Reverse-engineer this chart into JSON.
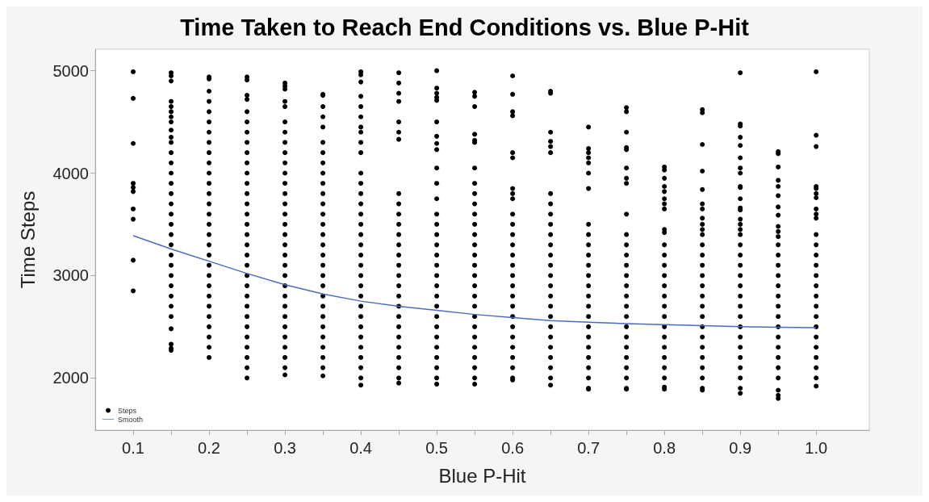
{
  "chart_data": {
    "type": "scatter",
    "title": "Time Taken to Reach End Conditions vs. Blue P-Hit",
    "xlabel": "Blue P-Hit",
    "ylabel": "Time Steps",
    "xlim": [
      0.05,
      1.07
    ],
    "ylim": [
      1490,
      5210
    ],
    "xticks": [
      0.1,
      {
        "value": 0.15,
        "label": null
      },
      0.2,
      {
        "value": 0.25,
        "label": null
      },
      0.3,
      {
        "value": 0.35,
        "label": null
      },
      0.4,
      {
        "value": 0.45,
        "label": null
      },
      0.5,
      {
        "value": 0.55,
        "label": null
      },
      0.6,
      {
        "value": 0.65,
        "label": null
      },
      0.7,
      {
        "value": 0.75,
        "label": null
      },
      0.8,
      {
        "value": 0.85,
        "label": null
      },
      0.9,
      {
        "value": 0.95,
        "label": null
      },
      {
        "value": 1,
        "label": "1.0"
      }
    ],
    "yticks": [
      2000,
      3000,
      4000,
      5000
    ],
    "grid": false,
    "legend": "bottom left",
    "series": [
      {
        "name": "Steps",
        "type": "scatter",
        "color": "#000000",
        "marker": "circle",
        "x": [
          0.1,
          0.1,
          0.1,
          0.1,
          0.1,
          0.1,
          0.1,
          0.1,
          0.1,
          0.1,
          0.15,
          0.15,
          0.15,
          0.15,
          0.15,
          0.15,
          0.15,
          0.15,
          0.15,
          0.15,
          0.15,
          0.15,
          0.15,
          0.15,
          0.15,
          0.15,
          0.15,
          0.15,
          0.15,
          0.15,
          0.15,
          0.15,
          0.15,
          0.15,
          0.15,
          0.15,
          0.15,
          0.15,
          0.15,
          0.15,
          0.15,
          0.15,
          0.2,
          0.2,
          0.2,
          0.2,
          0.2,
          0.2,
          0.2,
          0.2,
          0.2,
          0.2,
          0.2,
          0.2,
          0.2,
          0.2,
          0.2,
          0.2,
          0.2,
          0.2,
          0.2,
          0.2,
          0.2,
          0.2,
          0.2,
          0.2,
          0.2,
          0.2,
          0.2,
          0.2,
          0.2,
          0.25,
          0.25,
          0.25,
          0.25,
          0.25,
          0.25,
          0.25,
          0.25,
          0.25,
          0.25,
          0.25,
          0.25,
          0.25,
          0.25,
          0.25,
          0.25,
          0.25,
          0.25,
          0.25,
          0.25,
          0.25,
          0.25,
          0.25,
          0.25,
          0.25,
          0.25,
          0.25,
          0.25,
          0.25,
          0.25,
          0.25,
          0.3,
          0.3,
          0.3,
          0.3,
          0.3,
          0.3,
          0.3,
          0.3,
          0.3,
          0.3,
          0.3,
          0.3,
          0.3,
          0.3,
          0.3,
          0.3,
          0.3,
          0.3,
          0.3,
          0.3,
          0.3,
          0.3,
          0.3,
          0.3,
          0.3,
          0.3,
          0.3,
          0.3,
          0.3,
          0.3,
          0.3,
          0.35,
          0.35,
          0.35,
          0.35,
          0.35,
          0.35,
          0.35,
          0.35,
          0.35,
          0.35,
          0.35,
          0.35,
          0.35,
          0.35,
          0.35,
          0.35,
          0.35,
          0.35,
          0.35,
          0.35,
          0.35,
          0.35,
          0.35,
          0.35,
          0.35,
          0.35,
          0.35,
          0.35,
          0.35,
          0.4,
          0.4,
          0.4,
          0.4,
          0.4,
          0.4,
          0.4,
          0.4,
          0.4,
          0.4,
          0.4,
          0.4,
          0.4,
          0.4,
          0.4,
          0.4,
          0.4,
          0.4,
          0.4,
          0.4,
          0.4,
          0.4,
          0.4,
          0.4,
          0.4,
          0.4,
          0.4,
          0.4,
          0.4,
          0.4,
          0.4,
          0.4,
          0.45,
          0.45,
          0.45,
          0.45,
          0.45,
          0.45,
          0.45,
          0.45,
          0.45,
          0.45,
          0.45,
          0.45,
          0.45,
          0.45,
          0.45,
          0.45,
          0.45,
          0.45,
          0.45,
          0.45,
          0.45,
          0.45,
          0.45,
          0.45,
          0.45,
          0.45,
          0.45,
          0.5,
          0.5,
          0.5,
          0.5,
          0.5,
          0.5,
          0.5,
          0.5,
          0.5,
          0.5,
          0.5,
          0.5,
          0.5,
          0.5,
          0.5,
          0.5,
          0.5,
          0.5,
          0.5,
          0.5,
          0.5,
          0.5,
          0.5,
          0.5,
          0.5,
          0.5,
          0.5,
          0.5,
          0.5,
          0.5,
          0.55,
          0.55,
          0.55,
          0.55,
          0.55,
          0.55,
          0.55,
          0.55,
          0.55,
          0.55,
          0.55,
          0.55,
          0.55,
          0.55,
          0.55,
          0.55,
          0.55,
          0.55,
          0.55,
          0.55,
          0.55,
          0.55,
          0.55,
          0.55,
          0.55,
          0.55,
          0.55,
          0.55,
          0.6,
          0.6,
          0.6,
          0.6,
          0.6,
          0.6,
          0.6,
          0.6,
          0.6,
          0.6,
          0.6,
          0.6,
          0.6,
          0.6,
          0.6,
          0.6,
          0.6,
          0.6,
          0.6,
          0.6,
          0.6,
          0.6,
          0.6,
          0.6,
          0.6,
          0.6,
          0.6,
          0.65,
          0.65,
          0.65,
          0.65,
          0.65,
          0.65,
          0.65,
          0.65,
          0.65,
          0.65,
          0.65,
          0.65,
          0.65,
          0.65,
          0.65,
          0.65,
          0.65,
          0.65,
          0.65,
          0.65,
          0.65,
          0.65,
          0.65,
          0.65,
          0.65,
          0.65,
          0.7,
          0.7,
          0.7,
          0.7,
          0.7,
          0.7,
          0.7,
          0.7,
          0.7,
          0.7,
          0.7,
          0.7,
          0.7,
          0.7,
          0.7,
          0.7,
          0.7,
          0.7,
          0.7,
          0.7,
          0.7,
          0.7,
          0.7,
          0.7,
          0.7,
          0.75,
          0.75,
          0.75,
          0.75,
          0.75,
          0.75,
          0.75,
          0.75,
          0.75,
          0.75,
          0.75,
          0.75,
          0.75,
          0.75,
          0.75,
          0.75,
          0.75,
          0.75,
          0.75,
          0.75,
          0.75,
          0.75,
          0.75,
          0.75,
          0.75,
          0.75,
          0.8,
          0.8,
          0.8,
          0.8,
          0.8,
          0.8,
          0.8,
          0.8,
          0.8,
          0.8,
          0.8,
          0.8,
          0.8,
          0.8,
          0.8,
          0.8,
          0.8,
          0.8,
          0.8,
          0.8,
          0.8,
          0.8,
          0.8,
          0.8,
          0.8,
          0.8,
          0.85,
          0.85,
          0.85,
          0.85,
          0.85,
          0.85,
          0.85,
          0.85,
          0.85,
          0.85,
          0.85,
          0.85,
          0.85,
          0.85,
          0.85,
          0.85,
          0.85,
          0.85,
          0.85,
          0.85,
          0.85,
          0.85,
          0.85,
          0.85,
          0.85,
          0.85,
          0.85,
          0.9,
          0.9,
          0.9,
          0.9,
          0.9,
          0.9,
          0.9,
          0.9,
          0.9,
          0.9,
          0.9,
          0.9,
          0.9,
          0.9,
          0.9,
          0.9,
          0.9,
          0.9,
          0.9,
          0.9,
          0.9,
          0.9,
          0.9,
          0.9,
          0.9,
          0.9,
          0.9,
          0.9,
          0.9,
          0.9,
          0.9,
          0.9,
          0.9,
          0.95,
          0.95,
          0.95,
          0.95,
          0.95,
          0.95,
          0.95,
          0.95,
          0.95,
          0.95,
          0.95,
          0.95,
          0.95,
          0.95,
          0.95,
          0.95,
          0.95,
          0.95,
          0.95,
          0.95,
          0.95,
          0.95,
          0.95,
          0.95,
          0.95,
          0.95,
          0.95,
          0.95,
          1,
          1,
          1,
          1,
          1,
          1,
          1,
          1,
          1,
          1,
          1,
          1,
          1,
          1,
          1,
          1,
          1,
          1,
          1,
          1,
          1,
          1,
          1,
          1,
          1,
          1
        ],
        "values": [
          4990,
          4730,
          4290,
          3900,
          3860,
          3820,
          3650,
          3550,
          3150,
          2850,
          4980,
          4950,
          4900,
          4700,
          4650,
          4600,
          4550,
          4500,
          4420,
          4350,
          4300,
          4200,
          4100,
          4000,
          3900,
          3800,
          3700,
          3600,
          3500,
          3400,
          3300,
          3200,
          3100,
          3000,
          2900,
          2800,
          2700,
          2600,
          2480,
          2330,
          2290,
          2270,
          4940,
          4920,
          4800,
          4700,
          4600,
          4500,
          4400,
          4300,
          4200,
          4100,
          4000,
          3900,
          3800,
          3700,
          3600,
          3500,
          3400,
          3300,
          3200,
          3100,
          3000,
          2900,
          2800,
          2700,
          2600,
          2500,
          2400,
          2300,
          2200,
          4940,
          4910,
          4760,
          4720,
          4600,
          4500,
          4400,
          4300,
          4200,
          4100,
          4000,
          3900,
          3800,
          3700,
          3600,
          3500,
          3400,
          3300,
          3200,
          3100,
          3000,
          2900,
          2800,
          2700,
          2600,
          2500,
          2400,
          2300,
          2200,
          2100,
          2000,
          4880,
          4850,
          4820,
          4700,
          4650,
          4500,
          4400,
          4300,
          4200,
          4100,
          4000,
          3900,
          3800,
          3700,
          3600,
          3500,
          3400,
          3300,
          3200,
          3100,
          3000,
          2900,
          2800,
          2700,
          2600,
          2500,
          2400,
          2300,
          2200,
          2100,
          2030,
          4770,
          4760,
          4650,
          4550,
          4450,
          4300,
          4200,
          4100,
          4000,
          3900,
          3800,
          3700,
          3600,
          3500,
          3400,
          3300,
          3200,
          3100,
          3000,
          2900,
          2800,
          2700,
          2600,
          2500,
          2400,
          2300,
          2200,
          2100,
          2020,
          4990,
          4960,
          4890,
          4750,
          4650,
          4550,
          4450,
          4400,
          4300,
          4200,
          4000,
          3900,
          3800,
          3700,
          3600,
          3500,
          3400,
          3300,
          3200,
          3100,
          3000,
          2900,
          2800,
          2700,
          2600,
          2500,
          2400,
          2300,
          2200,
          2100,
          2000,
          1930,
          4980,
          4880,
          4780,
          4700,
          4500,
          4400,
          4330,
          3800,
          3700,
          3600,
          3500,
          3400,
          3300,
          3200,
          3100,
          3000,
          2900,
          2800,
          2700,
          2600,
          2500,
          2400,
          2300,
          2200,
          2100,
          2000,
          1950,
          5000,
          4830,
          4780,
          4740,
          4710,
          4500,
          4360,
          4290,
          4230,
          4050,
          3900,
          3750,
          3600,
          3500,
          3400,
          3300,
          3200,
          3100,
          3000,
          2900,
          2800,
          2700,
          2600,
          2500,
          2400,
          2300,
          2200,
          2100,
          2000,
          1940,
          4790,
          4750,
          4650,
          4380,
          4320,
          4300,
          4050,
          3900,
          3800,
          3700,
          3600,
          3500,
          3400,
          3300,
          3200,
          3100,
          3000,
          2900,
          2800,
          2700,
          2600,
          2500,
          2400,
          2300,
          2200,
          2100,
          2000,
          1940,
          4950,
          4770,
          4600,
          4560,
          4200,
          4150,
          3850,
          3800,
          3750,
          3600,
          3500,
          3400,
          3300,
          3200,
          3100,
          3000,
          2900,
          2800,
          2700,
          2600,
          2500,
          2400,
          2300,
          2200,
          2100,
          2000,
          1980,
          4800,
          4780,
          4400,
          4310,
          4260,
          4200,
          3800,
          3700,
          3600,
          3500,
          3400,
          3300,
          3200,
          3100,
          3000,
          2900,
          2800,
          2700,
          2600,
          2500,
          2400,
          2300,
          2200,
          2100,
          2000,
          1930,
          4450,
          4240,
          4200,
          4150,
          4100,
          4000,
          3850,
          3500,
          3400,
          3300,
          3200,
          3100,
          3000,
          2900,
          2800,
          2700,
          2600,
          2500,
          2400,
          2300,
          2200,
          2100,
          2000,
          1900,
          1890,
          4640,
          4600,
          4400,
          4250,
          4230,
          4050,
          3950,
          3900,
          3600,
          3400,
          3300,
          3200,
          3100,
          3000,
          2900,
          2800,
          2700,
          2600,
          2500,
          2400,
          2300,
          2200,
          2100,
          2000,
          1900,
          1890,
          4060,
          4030,
          3950,
          3870,
          3820,
          3750,
          3700,
          3650,
          3450,
          3420,
          3300,
          3200,
          3100,
          3000,
          2900,
          2800,
          2700,
          2600,
          2500,
          2400,
          2300,
          2200,
          2100,
          2000,
          1910,
          1890,
          4620,
          4590,
          4280,
          4020,
          3840,
          3700,
          3650,
          3560,
          3500,
          3450,
          3400,
          3300,
          3200,
          3100,
          3000,
          2900,
          2800,
          2700,
          2600,
          2500,
          2400,
          2300,
          2200,
          2100,
          2000,
          1900,
          1880,
          4980,
          4480,
          4460,
          4350,
          4270,
          4150,
          4050,
          4000,
          3870,
          3860,
          3750,
          3660,
          3640,
          3550,
          3500,
          3450,
          3400,
          3300,
          3200,
          3100,
          3000,
          2900,
          2800,
          2700,
          2600,
          2500,
          2400,
          2300,
          2200,
          2100,
          2000,
          1900,
          1850,
          4210,
          4190,
          4060,
          3930,
          3870,
          3780,
          3670,
          3590,
          3480,
          3430,
          3380,
          3300,
          3200,
          3100,
          3000,
          2900,
          2800,
          2700,
          2600,
          2500,
          2400,
          2300,
          2200,
          2100,
          2000,
          1880,
          1830,
          1800,
          4990,
          4370,
          4260,
          3870,
          3850,
          3800,
          3760,
          3650,
          3600,
          3560,
          3400,
          3300,
          3200,
          3100,
          3000,
          2900,
          2800,
          2700,
          2600,
          2500,
          2400,
          2300,
          2200,
          2100,
          2000,
          1920
        ]
      },
      {
        "name": "Smooth",
        "type": "line",
        "color": "#4a6bc1",
        "marker": "none",
        "line_style": "solid",
        "x": [
          0.1,
          0.15,
          0.2,
          0.25,
          0.3,
          0.35,
          0.4,
          0.45,
          0.5,
          0.55,
          0.6,
          0.65,
          0.7,
          0.75,
          0.8,
          0.85,
          0.9,
          0.95,
          1
        ],
        "values": [
          3390,
          3260,
          3140,
          3020,
          2910,
          2820,
          2750,
          2700,
          2660,
          2620,
          2590,
          2560,
          2545,
          2530,
          2520,
          2510,
          2500,
          2495,
          2490
        ]
      }
    ]
  }
}
